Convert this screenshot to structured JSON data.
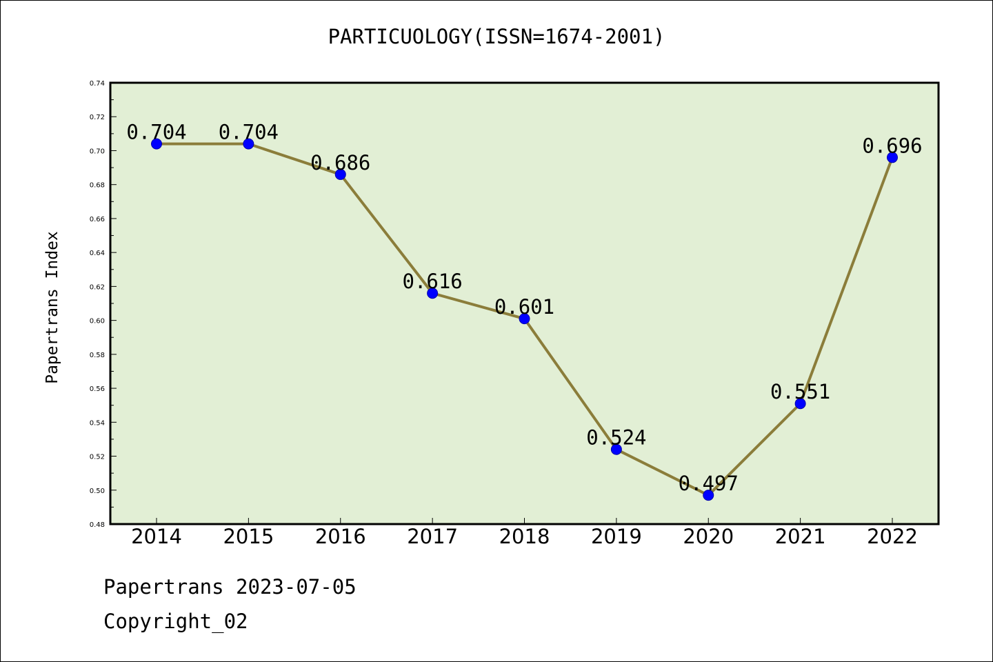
{
  "chart_data": {
    "type": "line",
    "title": "PARTICUOLOGY(ISSN=1674-2001)",
    "ylabel": "Papertrans Index",
    "xlabel": "",
    "categories": [
      "2014",
      "2015",
      "2016",
      "2017",
      "2018",
      "2019",
      "2020",
      "2021",
      "2022"
    ],
    "values": [
      0.704,
      0.704,
      0.686,
      0.616,
      0.601,
      0.524,
      0.497,
      0.551,
      0.696
    ],
    "data_labels": [
      "0.704",
      "0.704",
      "0.686",
      "0.616",
      "0.601",
      "0.524",
      "0.497",
      "0.551",
      "0.696"
    ],
    "ylim": [
      0.48,
      0.74
    ],
    "yticks": [
      "0.48",
      "0.50",
      "0.52",
      "0.54",
      "0.56",
      "0.58",
      "0.60",
      "0.62",
      "0.64",
      "0.66",
      "0.68",
      "0.70",
      "0.72",
      "0.74"
    ],
    "grid": false,
    "legend": "none",
    "colors": {
      "line": "#8b7d3a",
      "marker": "#0000ff",
      "plot_background": "#e2efd5",
      "axes": "#000000"
    }
  },
  "footer": {
    "line1": "Papertrans 2023-07-05",
    "line2": "Copyright_02"
  }
}
